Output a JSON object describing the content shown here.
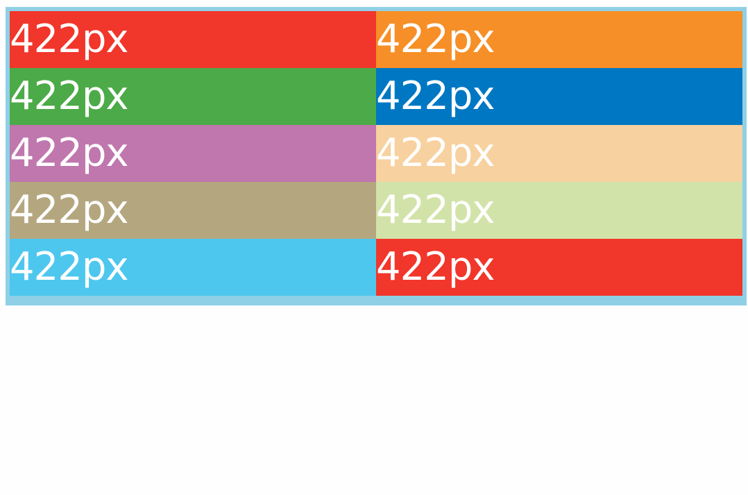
{
  "grid": {
    "border_color": "#8fd0e6",
    "items": [
      {
        "label": "422px",
        "color": "#f1362b"
      },
      {
        "label": "422px",
        "color": "#f68f27"
      },
      {
        "label": "422px",
        "color": "#4caa48"
      },
      {
        "label": "422px",
        "color": "#0077c3"
      },
      {
        "label": "422px",
        "color": "#bf77ae"
      },
      {
        "label": "422px",
        "color": "#f7d19f"
      },
      {
        "label": "422px",
        "color": "#b4a77f"
      },
      {
        "label": "422px",
        "color": "#d2e3a9"
      },
      {
        "label": "422px",
        "color": "#4ec7ee"
      },
      {
        "label": "422px",
        "color": "#f1362b"
      }
    ]
  }
}
